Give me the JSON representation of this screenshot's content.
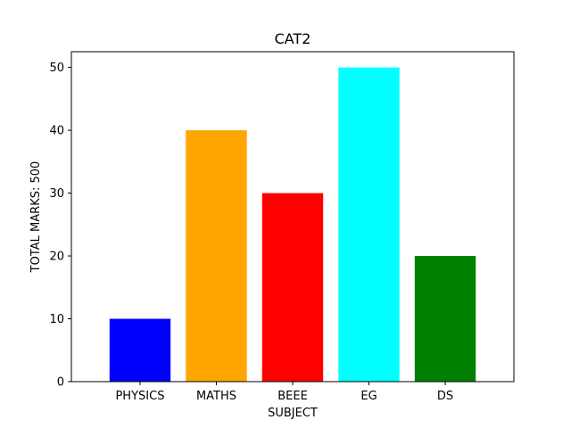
{
  "chart_data": {
    "type": "bar",
    "title": "CAT2",
    "xlabel": "SUBJECT",
    "ylabel": "TOTAL MARKS: 500",
    "categories": [
      "PHYSICS",
      "MATHS",
      "BEEE",
      "EG",
      "DS"
    ],
    "values": [
      10,
      40,
      30,
      50,
      20
    ],
    "colors": [
      "#0000ff",
      "#ffa500",
      "#ff0000",
      "#00ffff",
      "#008000"
    ],
    "ylim": [
      0,
      52.5
    ],
    "yticks": [
      0,
      10,
      20,
      30,
      40,
      50
    ],
    "grid": false,
    "legend": "none"
  }
}
